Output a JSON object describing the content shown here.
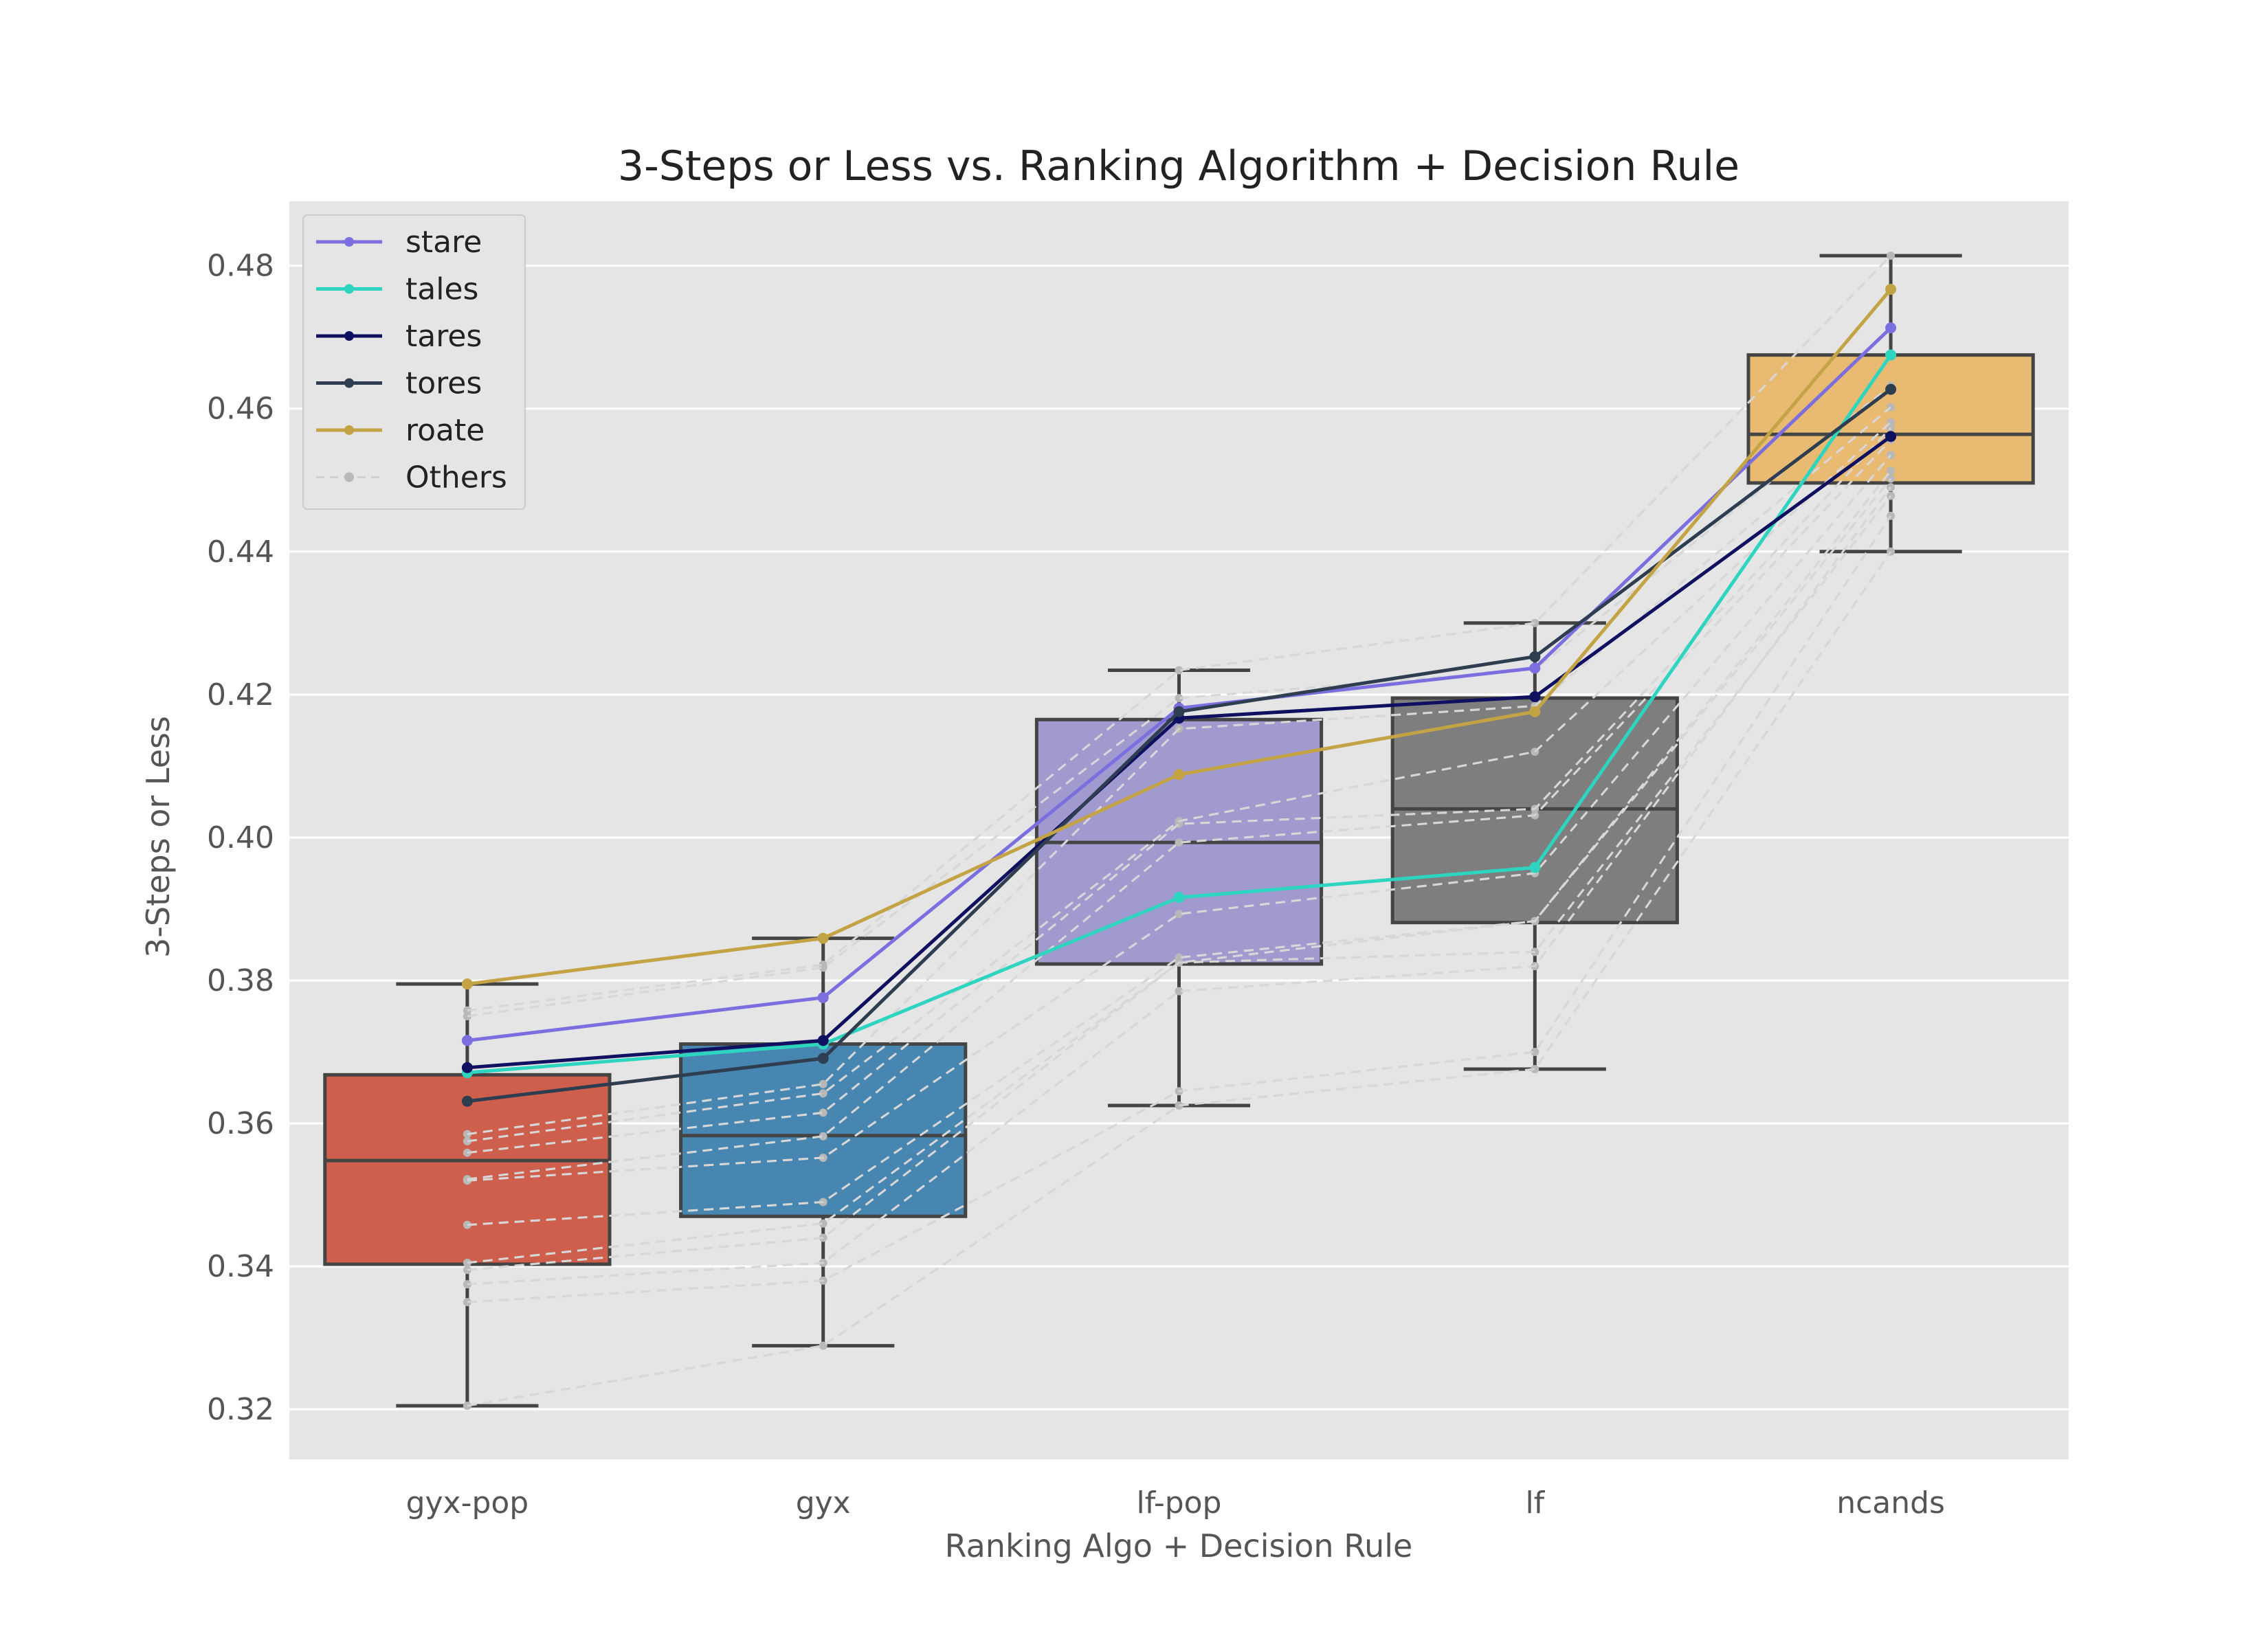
{
  "chart_data": {
    "type": "box",
    "title": "3-Steps or Less vs. Ranking Algorithm + Decision Rule",
    "xlabel": "Ranking Algo + Decision Rule",
    "ylabel": "3-Steps or Less",
    "categories": [
      "gyx-pop",
      "gyx",
      "lf-pop",
      "lf",
      "ncands"
    ],
    "ylim": [
      0.313,
      0.489
    ],
    "yticks": [
      0.32,
      0.34,
      0.36,
      0.38,
      0.4,
      0.42,
      0.44,
      0.46,
      0.48
    ],
    "grid": true,
    "legend_position": "top-left",
    "plot_background": "#e5e5e5",
    "boxes": [
      {
        "category": "gyx-pop",
        "color": "#cd5a47",
        "whisker_low": 0.3205,
        "q1": 0.3403,
        "median": 0.3548,
        "q3": 0.3668,
        "whisker_high": 0.3795
      },
      {
        "category": "gyx",
        "color": "#4182ad",
        "whisker_low": 0.3289,
        "q1": 0.347,
        "median": 0.3583,
        "q3": 0.3711,
        "whisker_high": 0.3859
      },
      {
        "category": "lf-pop",
        "color": "#9d97cd",
        "whisker_low": 0.3625,
        "q1": 0.3823,
        "median": 0.3993,
        "q3": 0.4165,
        "whisker_high": 0.4234
      },
      {
        "category": "lf",
        "color": "#7a7a7a",
        "whisker_low": 0.3676,
        "q1": 0.3881,
        "median": 0.404,
        "q3": 0.4195,
        "whisker_high": 0.43
      },
      {
        "category": "ncands",
        "color": "#e8b86c",
        "whisker_low": 0.44,
        "q1": 0.4496,
        "median": 0.4564,
        "q3": 0.4675,
        "whisker_high": 0.4814
      }
    ],
    "series": [
      {
        "name": "stare",
        "color": "#7b6fe0",
        "values": [
          0.3716,
          0.3776,
          0.4181,
          0.4237,
          0.4713
        ]
      },
      {
        "name": "tales",
        "color": "#2dd4c0",
        "values": [
          0.3671,
          0.3711,
          0.3916,
          0.3958,
          0.4675
        ]
      },
      {
        "name": "tares",
        "color": "#101060",
        "values": [
          0.3678,
          0.3716,
          0.4167,
          0.4197,
          0.4561
        ]
      },
      {
        "name": "tores",
        "color": "#2e3d50",
        "values": [
          0.3631,
          0.3691,
          0.4176,
          0.4253,
          0.4627
        ]
      },
      {
        "name": "roate",
        "color": "#c4a345",
        "values": [
          0.3795,
          0.3859,
          0.4088,
          0.4176,
          0.4767
        ]
      }
    ],
    "others": {
      "name": "Others",
      "color": "#cfcfcf",
      "series": [
        [
          0.3205,
          0.3289,
          0.3625,
          0.3676,
          0.44
        ],
        [
          0.335,
          0.338,
          0.3645,
          0.37,
          0.445
        ],
        [
          0.3375,
          0.3405,
          0.3785,
          0.382,
          0.449
        ],
        [
          0.3395,
          0.344,
          0.3825,
          0.384,
          0.4478
        ],
        [
          0.3405,
          0.346,
          0.3825,
          0.3883,
          0.4502
        ],
        [
          0.3458,
          0.349,
          0.3832,
          0.3883,
          0.4513
        ],
        [
          0.352,
          0.3552,
          0.3893,
          0.395,
          0.4535
        ],
        [
          0.3522,
          0.3582,
          0.3993,
          0.4031,
          0.4556
        ],
        [
          0.3559,
          0.3615,
          0.4019,
          0.404,
          0.4573
        ],
        [
          0.3575,
          0.3642,
          0.4023,
          0.412,
          0.4581
        ],
        [
          0.3585,
          0.3655,
          0.4152,
          0.4184,
          0.4602
        ],
        [
          0.375,
          0.3818,
          0.4195,
          0.4235,
          0.4632
        ],
        [
          0.3758,
          0.3822,
          0.4234,
          0.43,
          0.4814
        ]
      ]
    }
  }
}
